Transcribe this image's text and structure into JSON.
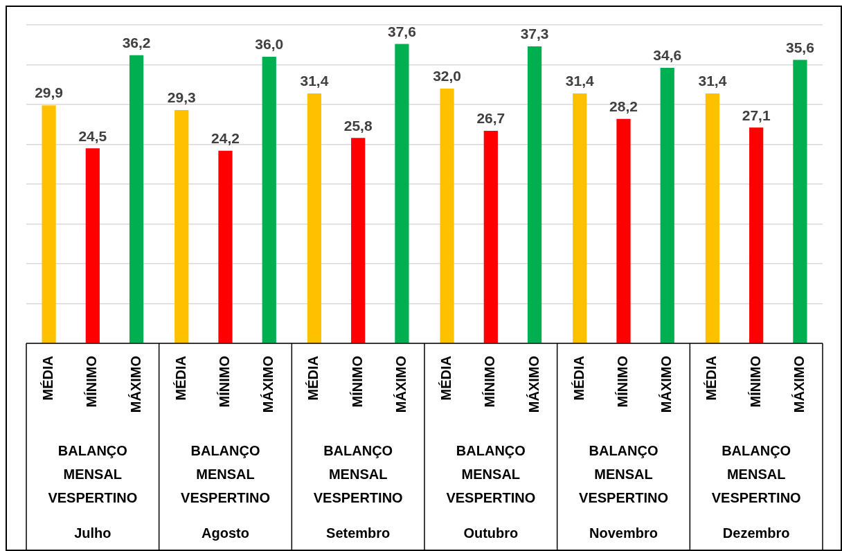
{
  "chart_data": {
    "type": "bar",
    "categories": [
      "Julho",
      "Agosto",
      "Setembro",
      "Outubro",
      "Novembro",
      "Dezembro"
    ],
    "series": [
      {
        "name": "MÉDIA",
        "color": "#ffc000",
        "values": [
          29.9,
          29.3,
          31.4,
          32.0,
          31.4,
          31.4
        ],
        "value_labels": [
          "29,9",
          "29,3",
          "31,4",
          "32,0",
          "31,4",
          "31,4"
        ]
      },
      {
        "name": "MÍNIMO",
        "color": "#ff0000",
        "values": [
          24.5,
          24.2,
          25.8,
          26.7,
          28.2,
          27.1
        ],
        "value_labels": [
          "24,5",
          "24,2",
          "25,8",
          "26,7",
          "28,2",
          "27,1"
        ]
      },
      {
        "name": "MÁXIMO",
        "color": "#00b050",
        "values": [
          36.2,
          36.0,
          37.6,
          37.3,
          34.6,
          35.6
        ],
        "value_labels": [
          "36,2",
          "36,0",
          "37,6",
          "37,3",
          "34,6",
          "35,6"
        ]
      }
    ],
    "annotations": [
      "BALANÇO MENSAL VESPERTINO",
      "BALANÇO MENSAL VESPERTINO",
      "BALANÇO MENSAL VESPERTINO",
      "BALANÇO MENSAL VESPERTINO",
      "BALANÇO MENSAL VESPERTINO",
      "BALANÇO MENSAL VESPERTINO"
    ],
    "ylim": [
      0,
      40
    ],
    "yticks": [
      {
        "value": 0,
        "label": null
      },
      {
        "value": 5,
        "label": null
      },
      {
        "value": 10,
        "label": null
      },
      {
        "value": 15,
        "label": null
      },
      {
        "value": 20,
        "label": null
      },
      {
        "value": 25,
        "label": null
      },
      {
        "value": 30,
        "label": null
      },
      {
        "value": 35,
        "label": null
      },
      {
        "value": 40,
        "label": null
      }
    ],
    "tick_labels": "x",
    "grid": "y",
    "legend": false
  }
}
